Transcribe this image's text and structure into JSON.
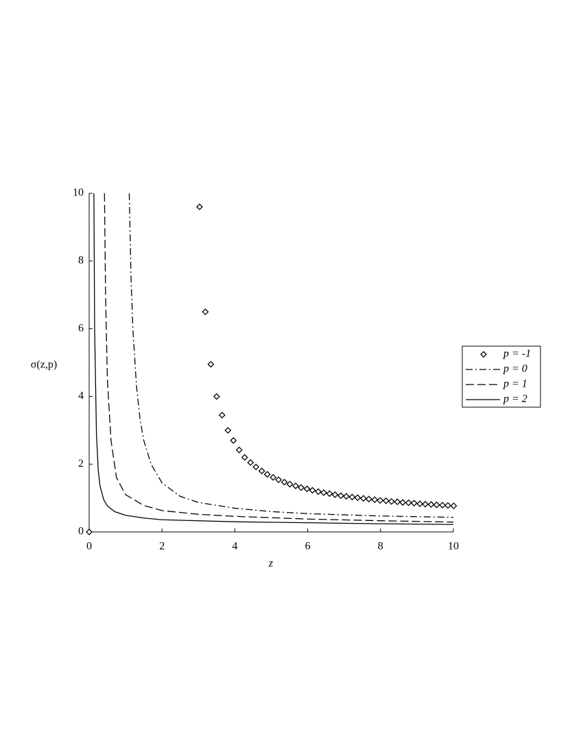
{
  "chart_data": {
    "type": "line",
    "xlabel": "z",
    "ylabel": "σ(z,p)",
    "xlim": [
      0,
      10
    ],
    "ylim": [
      0,
      10
    ],
    "xticks": [
      0,
      2,
      4,
      6,
      8,
      10
    ],
    "yticks": [
      0,
      2,
      4,
      6,
      8,
      10
    ],
    "legend": "right",
    "series": [
      {
        "name": "p = -1",
        "color": "#000000",
        "style": "diamond",
        "x": [
          0,
          3.03,
          3.19,
          3.34,
          3.5,
          3.65,
          3.81,
          3.96,
          4.12,
          4.27,
          4.43,
          4.58,
          4.74,
          4.89,
          5.05,
          5.2,
          5.36,
          5.51,
          5.67,
          5.82,
          5.98,
          6.13,
          6.29,
          6.44,
          6.6,
          6.75,
          6.91,
          7.06,
          7.22,
          7.37,
          7.53,
          7.68,
          7.84,
          7.99,
          8.15,
          8.3,
          8.46,
          8.61,
          8.77,
          8.92,
          9.08,
          9.23,
          9.39,
          9.54,
          9.7,
          9.85,
          10.01
        ],
        "values": [
          0,
          9.6,
          6.5,
          4.95,
          4.0,
          3.45,
          3.0,
          2.7,
          2.42,
          2.2,
          2.05,
          1.92,
          1.8,
          1.7,
          1.61,
          1.54,
          1.47,
          1.41,
          1.36,
          1.31,
          1.27,
          1.23,
          1.19,
          1.16,
          1.13,
          1.1,
          1.07,
          1.05,
          1.03,
          1.01,
          0.99,
          0.97,
          0.95,
          0.93,
          0.92,
          0.9,
          0.89,
          0.87,
          0.86,
          0.85,
          0.83,
          0.82,
          0.81,
          0.8,
          0.79,
          0.78,
          0.77
        ]
      },
      {
        "name": "p = 0",
        "color": "#000000",
        "style": "dashdot",
        "x": [
          1.1,
          1.15,
          1.2,
          1.3,
          1.4,
          1.5,
          1.7,
          2,
          2.5,
          3,
          4,
          5,
          6,
          8,
          10
        ],
        "values": [
          10,
          7.5,
          6,
          4.3,
          3.3,
          2.7,
          2.0,
          1.45,
          1.05,
          0.87,
          0.7,
          0.6,
          0.54,
          0.47,
          0.43
        ]
      },
      {
        "name": "p = 1",
        "color": "#000000",
        "style": "dash",
        "x": [
          0.42,
          0.45,
          0.5,
          0.6,
          0.75,
          1,
          1.5,
          2,
          3,
          4,
          6,
          8,
          10
        ],
        "values": [
          10,
          7,
          4.5,
          2.7,
          1.6,
          1.1,
          0.78,
          0.63,
          0.52,
          0.46,
          0.38,
          0.33,
          0.29
        ]
      },
      {
        "name": "p = 2",
        "color": "#000000",
        "style": "solid",
        "x": [
          0.13,
          0.15,
          0.2,
          0.25,
          0.3,
          0.4,
          0.5,
          0.7,
          1,
          1.5,
          2,
          4,
          6,
          8,
          10
        ],
        "values": [
          10,
          6,
          2.9,
          1.8,
          1.35,
          0.95,
          0.77,
          0.6,
          0.49,
          0.41,
          0.36,
          0.3,
          0.27,
          0.24,
          0.22
        ]
      }
    ]
  }
}
